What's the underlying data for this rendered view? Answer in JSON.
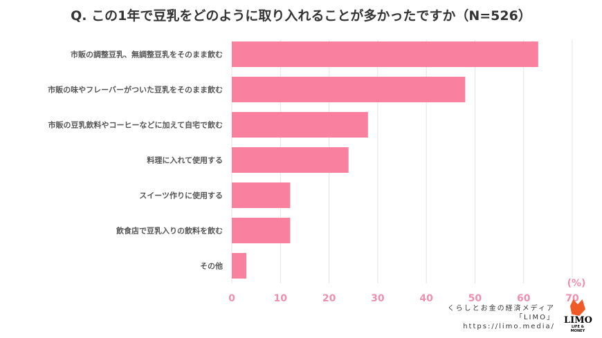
{
  "chart_data": {
    "type": "bar",
    "orientation": "horizontal",
    "title": "Q. この1年で豆乳をどのように取り入れることが多かったですか（N=526）",
    "categories": [
      "市販の調整豆乳、無調整豆乳をそのまま飲む",
      "市販の味やフレーバーがついた豆乳をそのまま飲む",
      "市販の豆乳飲料やコーヒーなどに加えて自宅で飲む",
      "料理に入れて使用する",
      "スイーツ作りに使用する",
      "飲食店で豆乳入りの飲料を飲む",
      "その他"
    ],
    "values": [
      63,
      48,
      28,
      24,
      12,
      12,
      3
    ],
    "xlabel": "(%)",
    "xlim": [
      0,
      70
    ],
    "ticks": [
      "0",
      "10",
      "20",
      "30",
      "40",
      "50",
      "60",
      "70"
    ],
    "grid": true,
    "bar_color": "#f9809f"
  },
  "credit": {
    "line1": "くらしとお金の経済メディア",
    "line2": "「LIMO」",
    "line3": "https://limo.media/"
  },
  "logo": {
    "name": "LIMO",
    "tagline": "LIFE & MONEY"
  }
}
